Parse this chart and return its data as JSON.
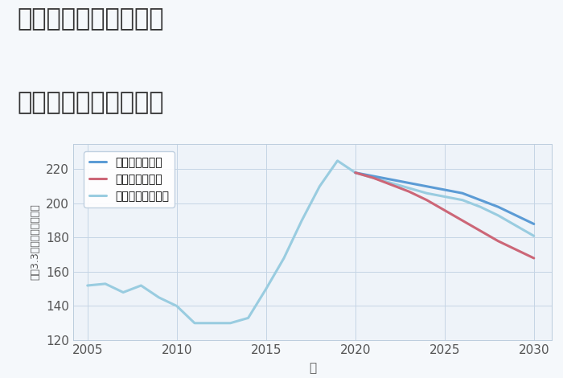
{
  "title_line1": "東京都板橋区稲荷台の",
  "title_line2": "中古戸建ての価格推移",
  "xlabel": "年",
  "ylabel": "坪（3.3㎡）単価（万円）",
  "background_color": "#f5f8fb",
  "plot_bg_color": "#eef3f9",
  "grid_color": "#c5d5e5",
  "years_hist": [
    2005,
    2006,
    2007,
    2008,
    2009,
    2010,
    2011,
    2012,
    2013,
    2014,
    2015,
    2016,
    2017,
    2018,
    2019,
    2020
  ],
  "values_hist": [
    152,
    153,
    148,
    152,
    145,
    140,
    130,
    130,
    130,
    133,
    150,
    168,
    190,
    210,
    225,
    218
  ],
  "years_future": [
    2020,
    2021,
    2022,
    2023,
    2024,
    2025,
    2026,
    2027,
    2028,
    2029,
    2030
  ],
  "values_good": [
    218,
    216,
    214,
    212,
    210,
    208,
    206,
    202,
    198,
    193,
    188
  ],
  "values_bad": [
    218,
    215,
    211,
    207,
    202,
    196,
    190,
    184,
    178,
    173,
    168
  ],
  "values_normal": [
    218,
    215,
    212,
    209,
    206,
    204,
    202,
    198,
    193,
    187,
    181
  ],
  "color_good": "#5b9bd5",
  "color_bad": "#cc6677",
  "color_normal": "#99cce0",
  "color_hist": "#99cce0",
  "legend_good": "グッドシナリオ",
  "legend_bad": "バッドシナリオ",
  "legend_normal": "ノーマルシナリオ",
  "ylim": [
    120,
    235
  ],
  "xlim": [
    2004.2,
    2031.0
  ],
  "yticks": [
    120,
    140,
    160,
    180,
    200,
    220
  ],
  "xticks": [
    2005,
    2010,
    2015,
    2020,
    2025,
    2030
  ],
  "title_fontsize": 22,
  "axis_fontsize": 11,
  "legend_fontsize": 10,
  "linewidth": 2.2
}
